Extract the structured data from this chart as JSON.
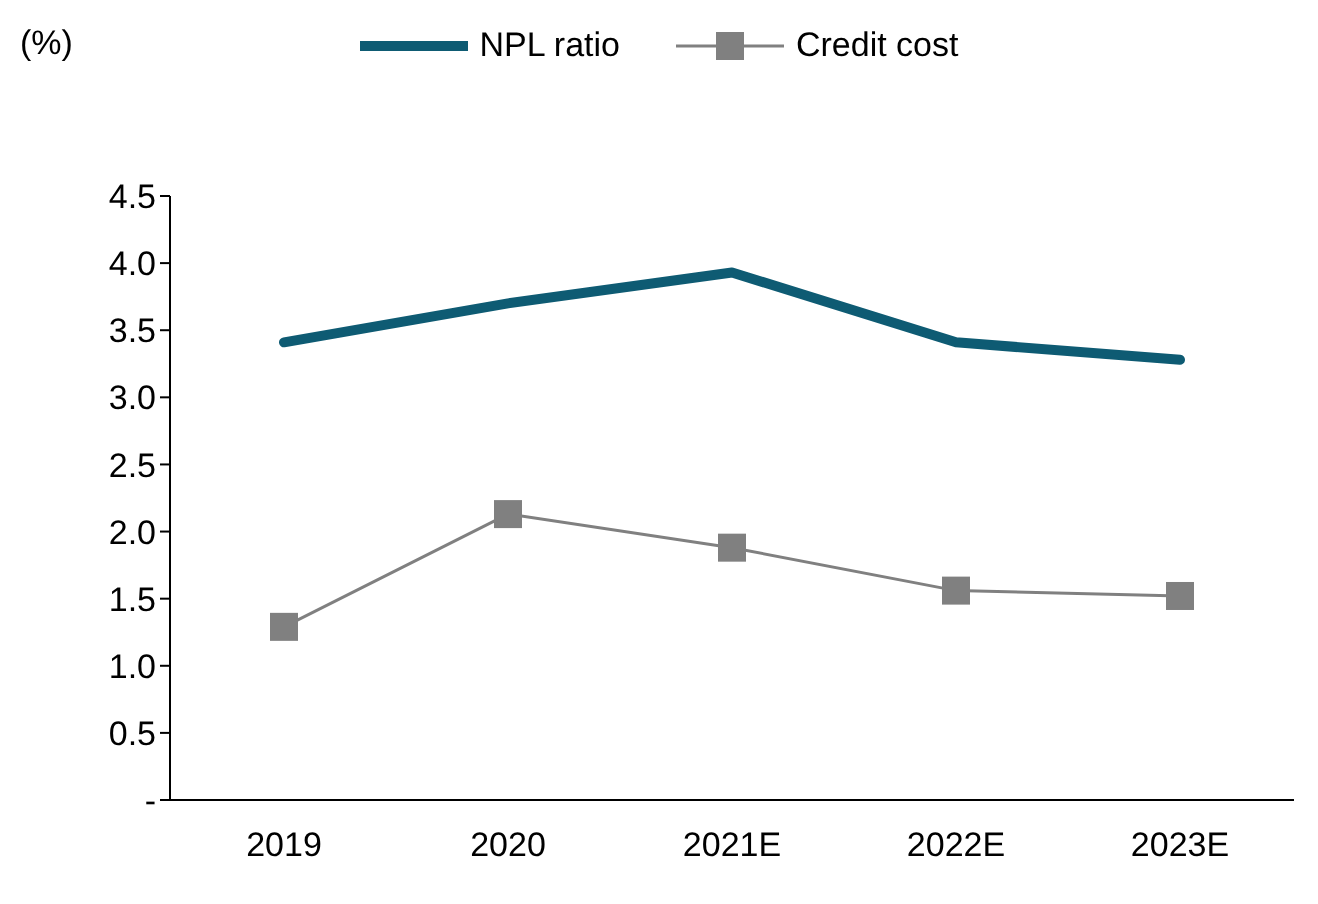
{
  "chart_data": {
    "type": "line",
    "ylabel": "(%)",
    "categories": [
      "2019",
      "2020",
      "2021E",
      "2022E",
      "2023E"
    ],
    "series": [
      {
        "name": "NPL ratio",
        "color": "#0e5b73",
        "values": [
          3.41,
          3.7,
          3.93,
          3.41,
          3.28
        ],
        "marker": "none"
      },
      {
        "name": "Credit cost",
        "color": "#808080",
        "values": [
          1.29,
          2.13,
          1.88,
          1.56,
          1.52
        ],
        "marker": "square"
      }
    ],
    "ylim": [
      0,
      4.5
    ],
    "yticks": [
      {
        "value": 0,
        "label": "-"
      },
      {
        "value": 0.5,
        "label": "0.5"
      },
      {
        "value": 1,
        "label": "1.0"
      },
      {
        "value": 1.5,
        "label": "1.5"
      },
      {
        "value": 2,
        "label": "2.0"
      },
      {
        "value": 2.5,
        "label": "2.5"
      },
      {
        "value": 3,
        "label": "3.0"
      },
      {
        "value": 3.5,
        "label": "3.5"
      },
      {
        "value": 4,
        "label": "4.0"
      },
      {
        "value": 4.5,
        "label": "4.5"
      }
    ],
    "grid": false,
    "legend": "top",
    "line_style": "solid"
  }
}
